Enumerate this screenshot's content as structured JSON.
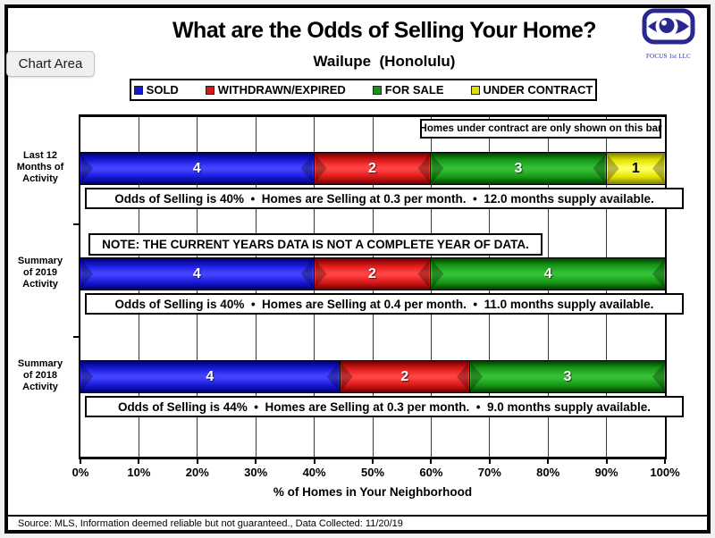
{
  "window": {
    "chart_area_tooltip": "Chart Area",
    "logo_text": "FOCUS 1st LLC"
  },
  "header": {
    "title": "What are the Odds of Selling Your Home?",
    "subtitle": "Wailupe  (Honolulu)"
  },
  "footer": {
    "source": "Source: MLS, Information deemed reliable but not guaranteed., Data Collected: 11/20/19"
  },
  "chart_data": {
    "type": "bar",
    "orientation": "horizontal-stacked",
    "title": "What are the Odds of Selling Your Home?",
    "subtitle": "Wailupe  (Honolulu)",
    "xlabel": "% of Homes in Your Neighborhood",
    "xlim": [
      0,
      100
    ],
    "x_ticks": [
      "0%",
      "10%",
      "20%",
      "30%",
      "40%",
      "50%",
      "60%",
      "70%",
      "80%",
      "90%",
      "100%"
    ],
    "grid": "vertical",
    "legend_position": "top",
    "legend": [
      "SOLD",
      "WITHDRAWN/EXPIRED",
      "FOR SALE",
      "UNDER CONTRACT"
    ],
    "series_colors": {
      "SOLD": {
        "dark": "#00006b",
        "main": "#1717d6",
        "bright": "#4242ff",
        "label_color": "#ffffff"
      },
      "WITHDRAWN/EXPIRED": {
        "dark": "#6b0000",
        "main": "#d61717",
        "bright": "#ff4242",
        "label_color": "#ffffff"
      },
      "FOR SALE": {
        "dark": "#003c00",
        "main": "#169616",
        "bright": "#35c035",
        "label_color": "#ffffff"
      },
      "UNDER CONTRACT": {
        "dark": "#7a7a00",
        "main": "#e0e000",
        "bright": "#ffff5c",
        "label_color": "#000000"
      }
    },
    "callout": "Homes under contract are only shown on this bar",
    "note": "NOTE: THE CURRENT YEARS DATA IS NOT A COMPLETE YEAR OF DATA.",
    "rows": [
      {
        "label_lines": [
          "Last 12",
          "Months of",
          "Activity"
        ],
        "segments": [
          {
            "series": "SOLD",
            "value": 4
          },
          {
            "series": "WITHDRAWN/EXPIRED",
            "value": 2
          },
          {
            "series": "FOR SALE",
            "value": 3
          },
          {
            "series": "UNDER CONTRACT",
            "value": 1
          }
        ],
        "footnote": "Odds of Selling is 40%  •  Homes are Selling at 0.3 per month.  •  12.0 months supply available."
      },
      {
        "label_lines": [
          "Summary",
          "of 2019",
          "Activity"
        ],
        "segments": [
          {
            "series": "SOLD",
            "value": 4
          },
          {
            "series": "WITHDRAWN/EXPIRED",
            "value": 2
          },
          {
            "series": "FOR SALE",
            "value": 4
          }
        ],
        "footnote": "Odds of Selling is 40%  •  Homes are Selling at 0.4 per month.  •  11.0 months supply available."
      },
      {
        "label_lines": [
          "Summary",
          "of 2018",
          "Activity"
        ],
        "segments": [
          {
            "series": "SOLD",
            "value": 4
          },
          {
            "series": "WITHDRAWN/EXPIRED",
            "value": 2
          },
          {
            "series": "FOR SALE",
            "value": 3
          }
        ],
        "footnote": "Odds of Selling is 44%  •  Homes are Selling at 0.3 per month.  •  9.0 months supply available."
      }
    ]
  }
}
